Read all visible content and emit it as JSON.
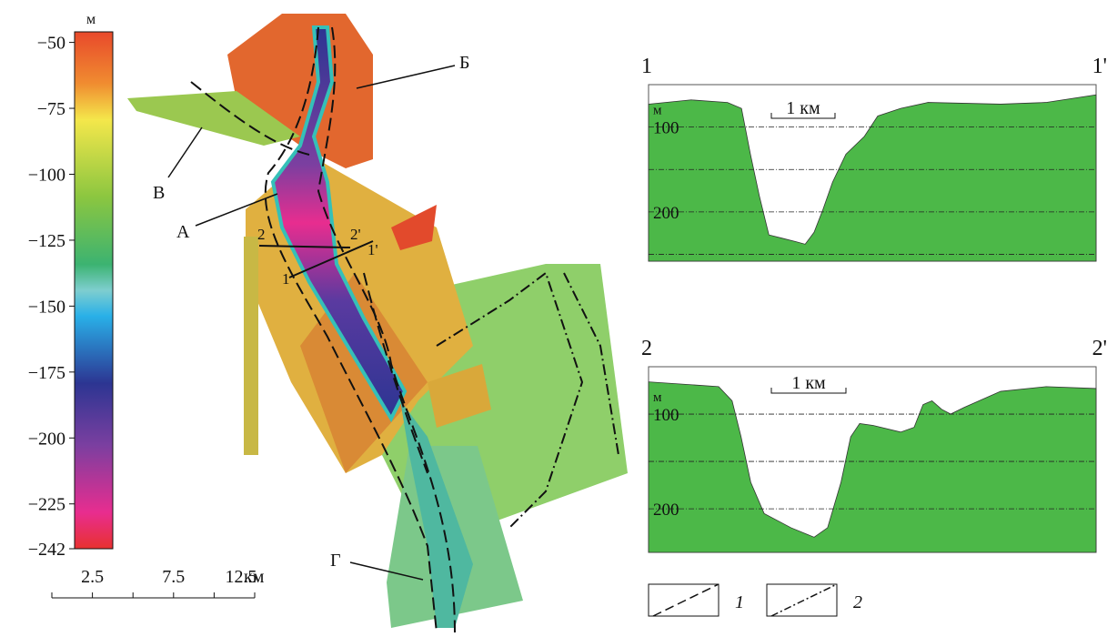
{
  "colorbar": {
    "unit": "м",
    "lim": [
      -242,
      -46
    ],
    "ticks": [
      {
        "value": -50,
        "label": "−50"
      },
      {
        "value": -75,
        "label": "−75"
      },
      {
        "value": -100,
        "label": "−100"
      },
      {
        "value": -125,
        "label": "−125"
      },
      {
        "value": -150,
        "label": "−150"
      },
      {
        "value": -175,
        "label": "−175"
      },
      {
        "value": -200,
        "label": "−200"
      },
      {
        "value": -225,
        "label": "−225"
      },
      {
        "value": -242,
        "label": "−242"
      }
    ]
  },
  "scalebar": {
    "xlim": [
      0,
      12.5
    ],
    "xticks": [
      2.5,
      7.5,
      12.5
    ],
    "minor_ticks": [
      0,
      5,
      10
    ],
    "unit": "км"
  },
  "map_labels": [
    "Б",
    "В",
    "А",
    "2",
    "2'",
    "1'",
    "1",
    "Г"
  ],
  "profiles": [
    {
      "type": "area",
      "start_label": "1",
      "end_label": "1'",
      "scale_label": "1 км",
      "scale_length": 1,
      "y_unit": "м",
      "color": "#4cb848",
      "xlim": [
        0,
        7.03
      ],
      "ylim": [
        258,
        50
      ],
      "yticks": [
        100,
        200
      ],
      "grid_minor": [
        150,
        250
      ],
      "x": [
        0,
        0.67,
        1.24,
        1.46,
        1.6,
        1.74,
        1.89,
        2.1,
        2.31,
        2.46,
        2.6,
        2.74,
        2.89,
        3.1,
        3.39,
        3.6,
        3.96,
        4.39,
        5.53,
        6.24,
        7.03
      ],
      "values": [
        73,
        68,
        71,
        78,
        132,
        181,
        227,
        231,
        235,
        238,
        224,
        197,
        165,
        132,
        111,
        87,
        78,
        71,
        73,
        71,
        62
      ]
    },
    {
      "type": "area",
      "start_label": "2",
      "end_label": "2'",
      "scale_label": "1 км",
      "scale_length": 1,
      "y_unit": "м",
      "color": "#4cb848",
      "xlim": [
        0,
        6
      ],
      "ylim": [
        246,
        50
      ],
      "yticks": [
        100,
        200
      ],
      "grid_minor": [
        150
      ],
      "x": [
        0,
        0.94,
        1.12,
        1.24,
        1.37,
        1.55,
        1.91,
        2.22,
        2.4,
        2.58,
        2.71,
        2.83,
        3.01,
        3.38,
        3.56,
        3.68,
        3.8,
        3.93,
        4.05,
        4.23,
        4.72,
        5.33,
        6
      ],
      "values": [
        66,
        71,
        86,
        124,
        172,
        205,
        220,
        230,
        220,
        172,
        124,
        110,
        112,
        119,
        114,
        90,
        86,
        95,
        100,
        93,
        76,
        71,
        73
      ]
    }
  ],
  "legend": [
    {
      "label": "1",
      "style": "dashed"
    },
    {
      "label": "2",
      "style": "dash-dot"
    }
  ]
}
